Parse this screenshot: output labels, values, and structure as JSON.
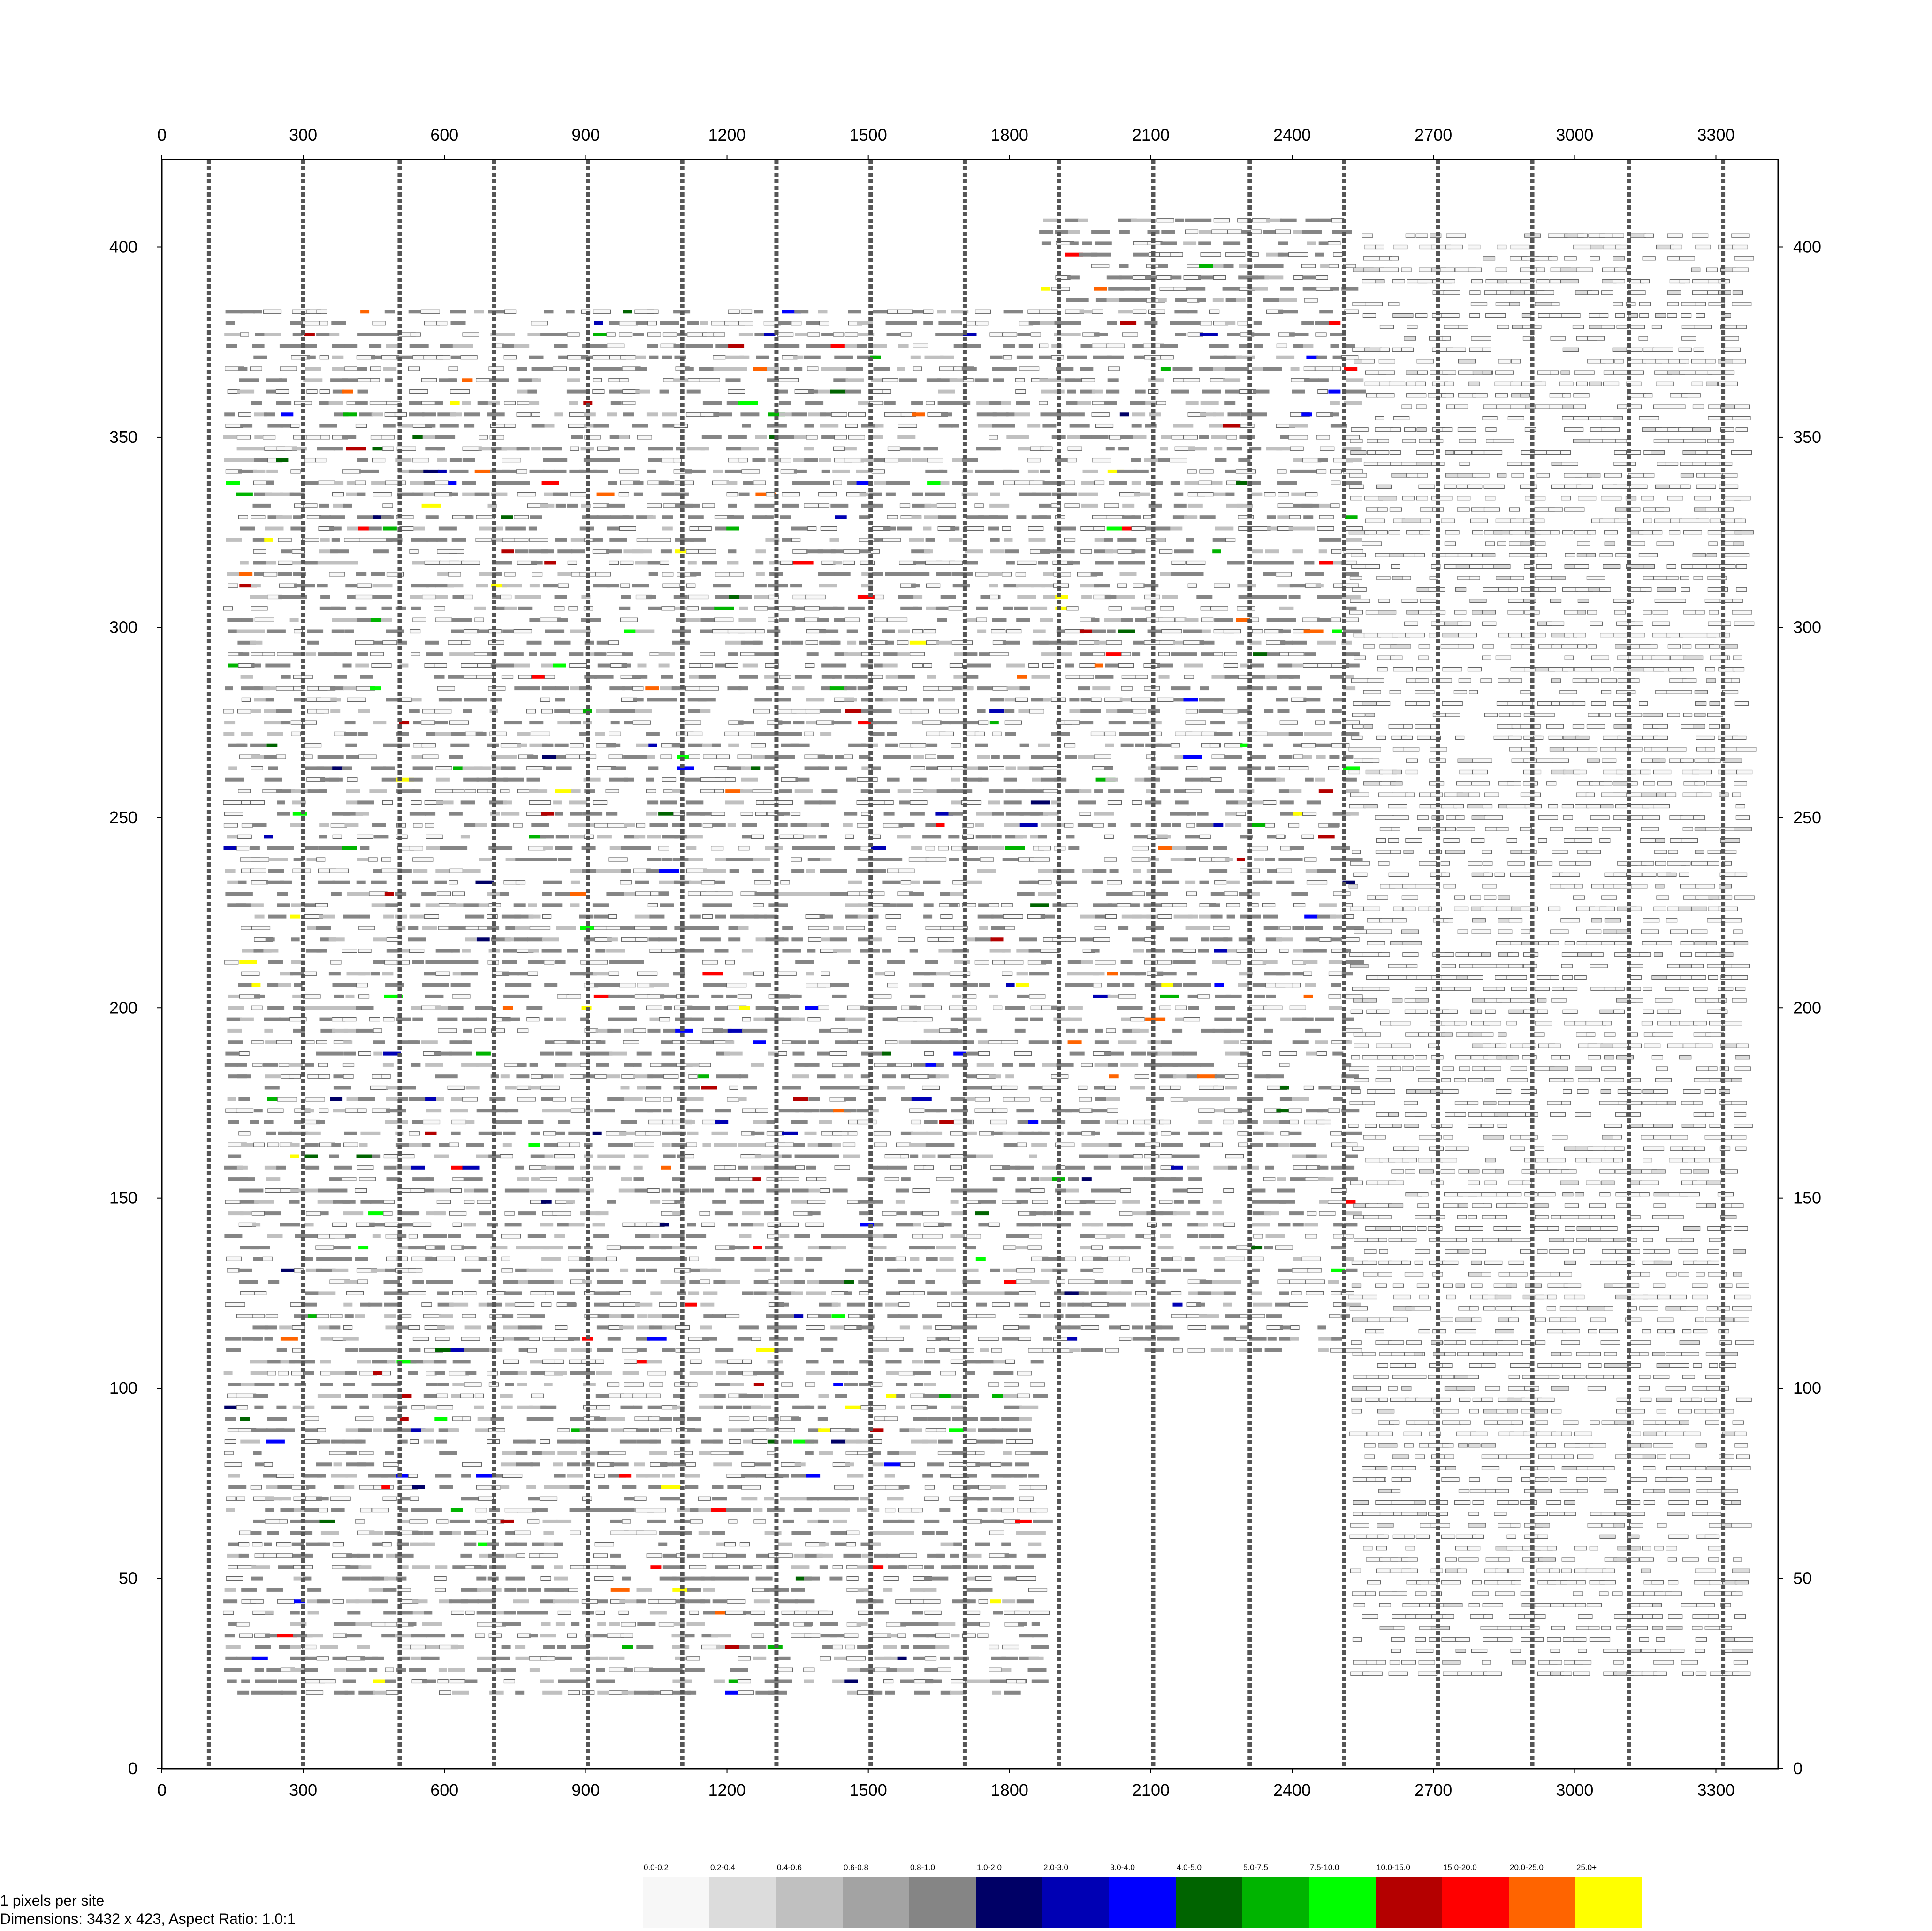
{
  "chart_data": {
    "type": "heatmap",
    "title": "",
    "xlabel": "",
    "ylabel": "",
    "xlim": [
      0,
      3432
    ],
    "ylim": [
      0,
      423
    ],
    "x_ticks": [
      0,
      300,
      600,
      900,
      1200,
      1500,
      1800,
      2100,
      2400,
      2700,
      3000,
      3300
    ],
    "x_tick_labels": [
      "0",
      "300",
      "600",
      "900",
      "1200",
      "1500",
      "1800",
      "2100",
      "2400",
      "2700",
      "3000",
      "3300"
    ],
    "y_ticks": [
      0,
      50,
      100,
      150,
      200,
      250,
      300,
      350,
      400
    ],
    "y_tick_labels": [
      "0",
      "50",
      "100",
      "150",
      "200",
      "250",
      "300",
      "350",
      "400"
    ],
    "column_boundaries_x": [
      100,
      300,
      505,
      705,
      905,
      1105,
      1305,
      1505,
      1705,
      1905,
      2105,
      2310,
      2510,
      2710,
      2910,
      3115,
      3315
    ],
    "regions": [
      {
        "x": [
          130,
          1860
        ],
        "y": [
          20,
          385
        ],
        "intensity": "mixed"
      },
      {
        "x": [
          1860,
          2520
        ],
        "y": [
          110,
          410
        ],
        "intensity": "mixed"
      },
      {
        "x": [
          2520,
          3340
        ],
        "y": [
          25,
          405
        ],
        "intensity": "low"
      }
    ],
    "legend": {
      "position": "bottom",
      "bins": [
        {
          "label": "0.0-0.2",
          "color": "#f7f7f7"
        },
        {
          "label": "0.2-0.4",
          "color": "#dcdcdc"
        },
        {
          "label": "0.4-0.6",
          "color": "#c0c0c0"
        },
        {
          "label": "0.6-0.8",
          "color": "#a3a3a3"
        },
        {
          "label": "0.8-1.0",
          "color": "#858585"
        },
        {
          "label": "1.0-2.0",
          "color": "#000066"
        },
        {
          "label": "2.0-3.0",
          "color": "#0000b4"
        },
        {
          "label": "3.0-4.0",
          "color": "#0000ff"
        },
        {
          "label": "4.0-5.0",
          "color": "#006400"
        },
        {
          "label": "5.0-7.5",
          "color": "#00b400"
        },
        {
          "label": "7.5-10.0",
          "color": "#00ff00"
        },
        {
          "label": "10.0-15.0",
          "color": "#b40000"
        },
        {
          "label": "15.0-20.0",
          "color": "#ff0000"
        },
        {
          "label": "20.0-25.0",
          "color": "#ff6400"
        },
        {
          "label": "25.0+",
          "color": "#ffff00"
        }
      ]
    }
  },
  "footer": {
    "pixels_per_site": "1 pixels per site",
    "dimensions": "Dimensions: 3432 x 423, Aspect Ratio: 1.0:1"
  }
}
